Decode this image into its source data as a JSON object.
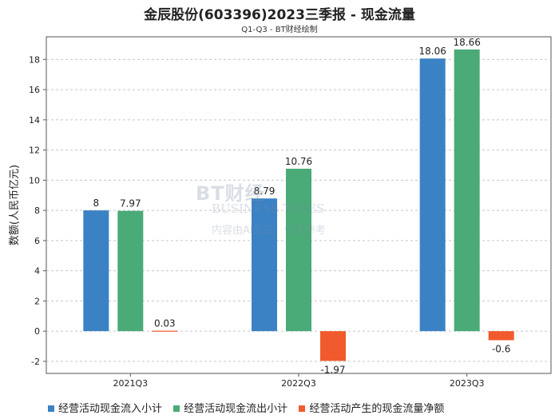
{
  "title": "金辰股份(603396)2023三季报 - 现金流量",
  "subtitle": "Q1-Q3 - BT财经绘制",
  "watermark": {
    "brand": "BT财经",
    "english": "BUSINESS TIMES",
    "note": "内容由AI生成，仅供参考"
  },
  "colors": {
    "series1": "#3a82c4",
    "series2": "#4aaa78",
    "series3": "#f15a2c",
    "grid": "#c8c8c8",
    "axis": "#555555"
  },
  "chart_data": {
    "type": "bar",
    "title": "金辰股份(603396)2023三季报 - 现金流量",
    "subtitle": "Q1-Q3 - BT财经绘制",
    "xlabel": "",
    "ylabel": "数额(人民币亿元)",
    "ylim": [
      -2.8,
      19.5
    ],
    "yticks": [
      -2,
      0,
      2,
      4,
      6,
      8,
      10,
      12,
      14,
      16,
      18
    ],
    "grid": true,
    "legend_position": "bottom",
    "categories": [
      "2021Q3",
      "2022Q3",
      "2023Q3"
    ],
    "series": [
      {
        "name": "经营活动现金流入小计",
        "values": [
          8,
          8.79,
          18.06
        ],
        "labels": [
          "8",
          "8.79",
          "18.06"
        ]
      },
      {
        "name": "经营活动现金流出小计",
        "values": [
          7.97,
          10.76,
          18.66
        ],
        "labels": [
          "7.97",
          "10.76",
          "18.66"
        ]
      },
      {
        "name": "经营活动产生的现金流量净额",
        "values": [
          0.03,
          -1.97,
          -0.6
        ],
        "labels": [
          "0.03",
          "-1.97",
          "-0.6"
        ]
      }
    ]
  }
}
